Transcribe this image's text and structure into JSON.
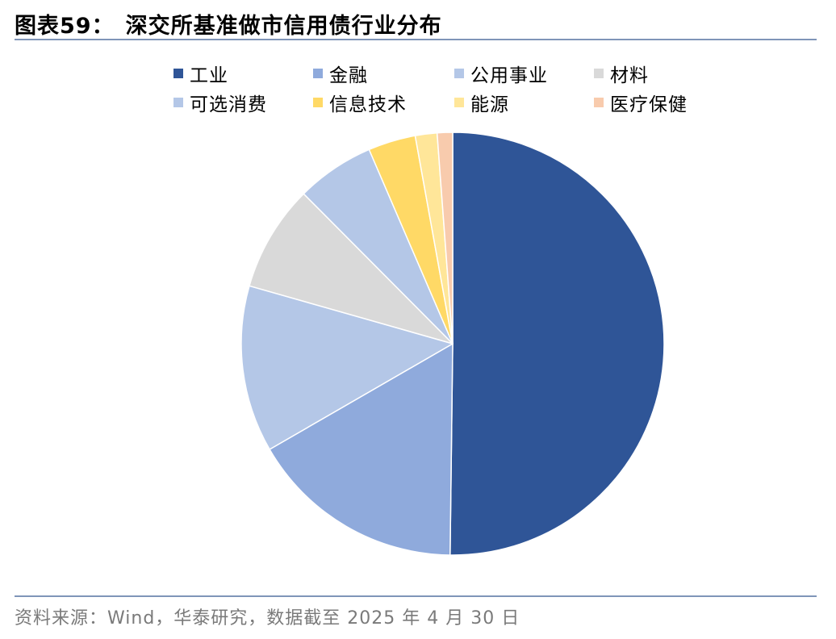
{
  "figure": {
    "label": "图表59：",
    "title": "深交所基准做市信用债行业分布"
  },
  "source": "资料来源：Wind，华泰研究，数据截至 2025 年 4 月 30 日",
  "chart_data": {
    "type": "pie",
    "title": "",
    "legend_placement": "top",
    "start": "12 o'clock, clockwise",
    "slices": [
      {
        "name": "工业",
        "value": 51.2,
        "color": "#2f5597"
      },
      {
        "name": "金融",
        "value": 16.8,
        "color": "#8faadc"
      },
      {
        "name": "公用事业",
        "value": 13.0,
        "color": "#b4c7e7"
      },
      {
        "name": "材料",
        "value": 8.3,
        "color": "#d9d9d9"
      },
      {
        "name": "可选消费",
        "value": 6.1,
        "color": "#b4c7e7"
      },
      {
        "name": "信息技术",
        "value": 3.7,
        "color": "#ffd966"
      },
      {
        "name": "能源",
        "value": 1.7,
        "color": "#ffe699"
      },
      {
        "name": "医疗保健",
        "value": 1.2,
        "color": "#f8cbad"
      }
    ]
  }
}
